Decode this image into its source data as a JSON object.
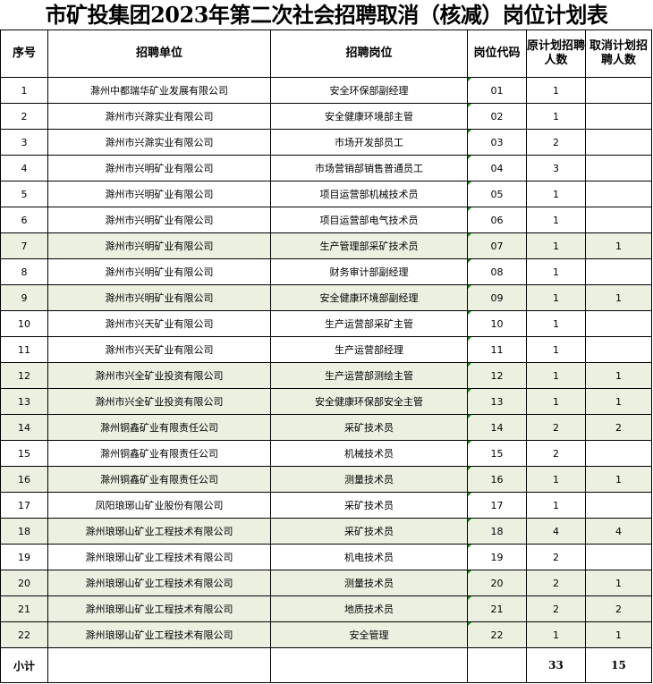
{
  "title": "市矿投集团2023年第二次社会招聘取消（核减）岗位计划表",
  "headers": [
    "序号",
    "招聘单位",
    "招聘岗位",
    "岗位代码",
    "原计划招聘人数",
    "取消计划招聘人数"
  ],
  "colors": {
    "shaded_row": "#ebf0e1",
    "comment_marker": "#1a8a1a"
  },
  "rows": [
    {
      "no": "1",
      "unit": "滁州中都瑞华矿业发展有限公司",
      "post": "安全环保部副经理",
      "code": "01",
      "orig": "1",
      "cancel": ""
    },
    {
      "no": "2",
      "unit": "滁州市兴滁实业有限公司",
      "post": "安全健康环境部主管",
      "code": "02",
      "orig": "1",
      "cancel": ""
    },
    {
      "no": "3",
      "unit": "滁州市兴滁实业有限公司",
      "post": "市场开发部员工",
      "code": "03",
      "orig": "2",
      "cancel": ""
    },
    {
      "no": "4",
      "unit": "滁州市兴明矿业有限公司",
      "post": "市场营销部销售普通员工",
      "code": "04",
      "orig": "3",
      "cancel": ""
    },
    {
      "no": "5",
      "unit": "滁州市兴明矿业有限公司",
      "post": "项目运营部机械技术员",
      "code": "05",
      "orig": "1",
      "cancel": ""
    },
    {
      "no": "6",
      "unit": "滁州市兴明矿业有限公司",
      "post": "项目运营部电气技术员",
      "code": "06",
      "orig": "1",
      "cancel": ""
    },
    {
      "no": "7",
      "unit": "滁州市兴明矿业有限公司",
      "post": "生产管理部采矿技术员",
      "code": "07",
      "orig": "1",
      "cancel": "1"
    },
    {
      "no": "8",
      "unit": "滁州市兴明矿业有限公司",
      "post": "财务审计部副经理",
      "code": "08",
      "orig": "1",
      "cancel": ""
    },
    {
      "no": "9",
      "unit": "滁州市兴明矿业有限公司",
      "post": "安全健康环境部副经理",
      "code": "09",
      "orig": "1",
      "cancel": "1"
    },
    {
      "no": "10",
      "unit": "滁州市兴天矿业有限公司",
      "post": "生产运营部采矿主管",
      "code": "10",
      "orig": "1",
      "cancel": ""
    },
    {
      "no": "11",
      "unit": "滁州市兴天矿业有限公司",
      "post": "生产运营部经理",
      "code": "11",
      "orig": "1",
      "cancel": ""
    },
    {
      "no": "12",
      "unit": "滁州市兴全矿业投资有限公司",
      "post": "生产运营部测绘主管",
      "code": "12",
      "orig": "1",
      "cancel": "1"
    },
    {
      "no": "13",
      "unit": "滁州市兴全矿业投资有限公司",
      "post": "安全健康环保部安全主管",
      "code": "13",
      "orig": "1",
      "cancel": "1"
    },
    {
      "no": "14",
      "unit": "滁州铜鑫矿业有限责任公司",
      "post": "采矿技术员",
      "code": "14",
      "orig": "2",
      "cancel": "2"
    },
    {
      "no": "15",
      "unit": "滁州铜鑫矿业有限责任公司",
      "post": "机械技术员",
      "code": "15",
      "orig": "2",
      "cancel": ""
    },
    {
      "no": "16",
      "unit": "滁州铜鑫矿业有限责任公司",
      "post": "测量技术员",
      "code": "16",
      "orig": "1",
      "cancel": "1"
    },
    {
      "no": "17",
      "unit": "凤阳琅琊山矿业股份有限公司",
      "post": "采矿技术员",
      "code": "17",
      "orig": "1",
      "cancel": ""
    },
    {
      "no": "18",
      "unit": "滁州琅琊山矿业工程技术有限公司",
      "post": "采矿技术员",
      "code": "18",
      "orig": "4",
      "cancel": "4"
    },
    {
      "no": "19",
      "unit": "滁州琅琊山矿业工程技术有限公司",
      "post": "机电技术员",
      "code": "19",
      "orig": "2",
      "cancel": ""
    },
    {
      "no": "20",
      "unit": "滁州琅琊山矿业工程技术有限公司",
      "post": "测量技术员",
      "code": "20",
      "orig": "2",
      "cancel": "1"
    },
    {
      "no": "21",
      "unit": "滁州琅琊山矿业工程技术有限公司",
      "post": "地质技术员",
      "code": "21",
      "orig": "2",
      "cancel": "2"
    },
    {
      "no": "22",
      "unit": "滁州琅琊山矿业工程技术有限公司",
      "post": "安全管理",
      "code": "22",
      "orig": "1",
      "cancel": "1"
    }
  ],
  "total": {
    "label": "小计",
    "orig": "33",
    "cancel": "15"
  }
}
